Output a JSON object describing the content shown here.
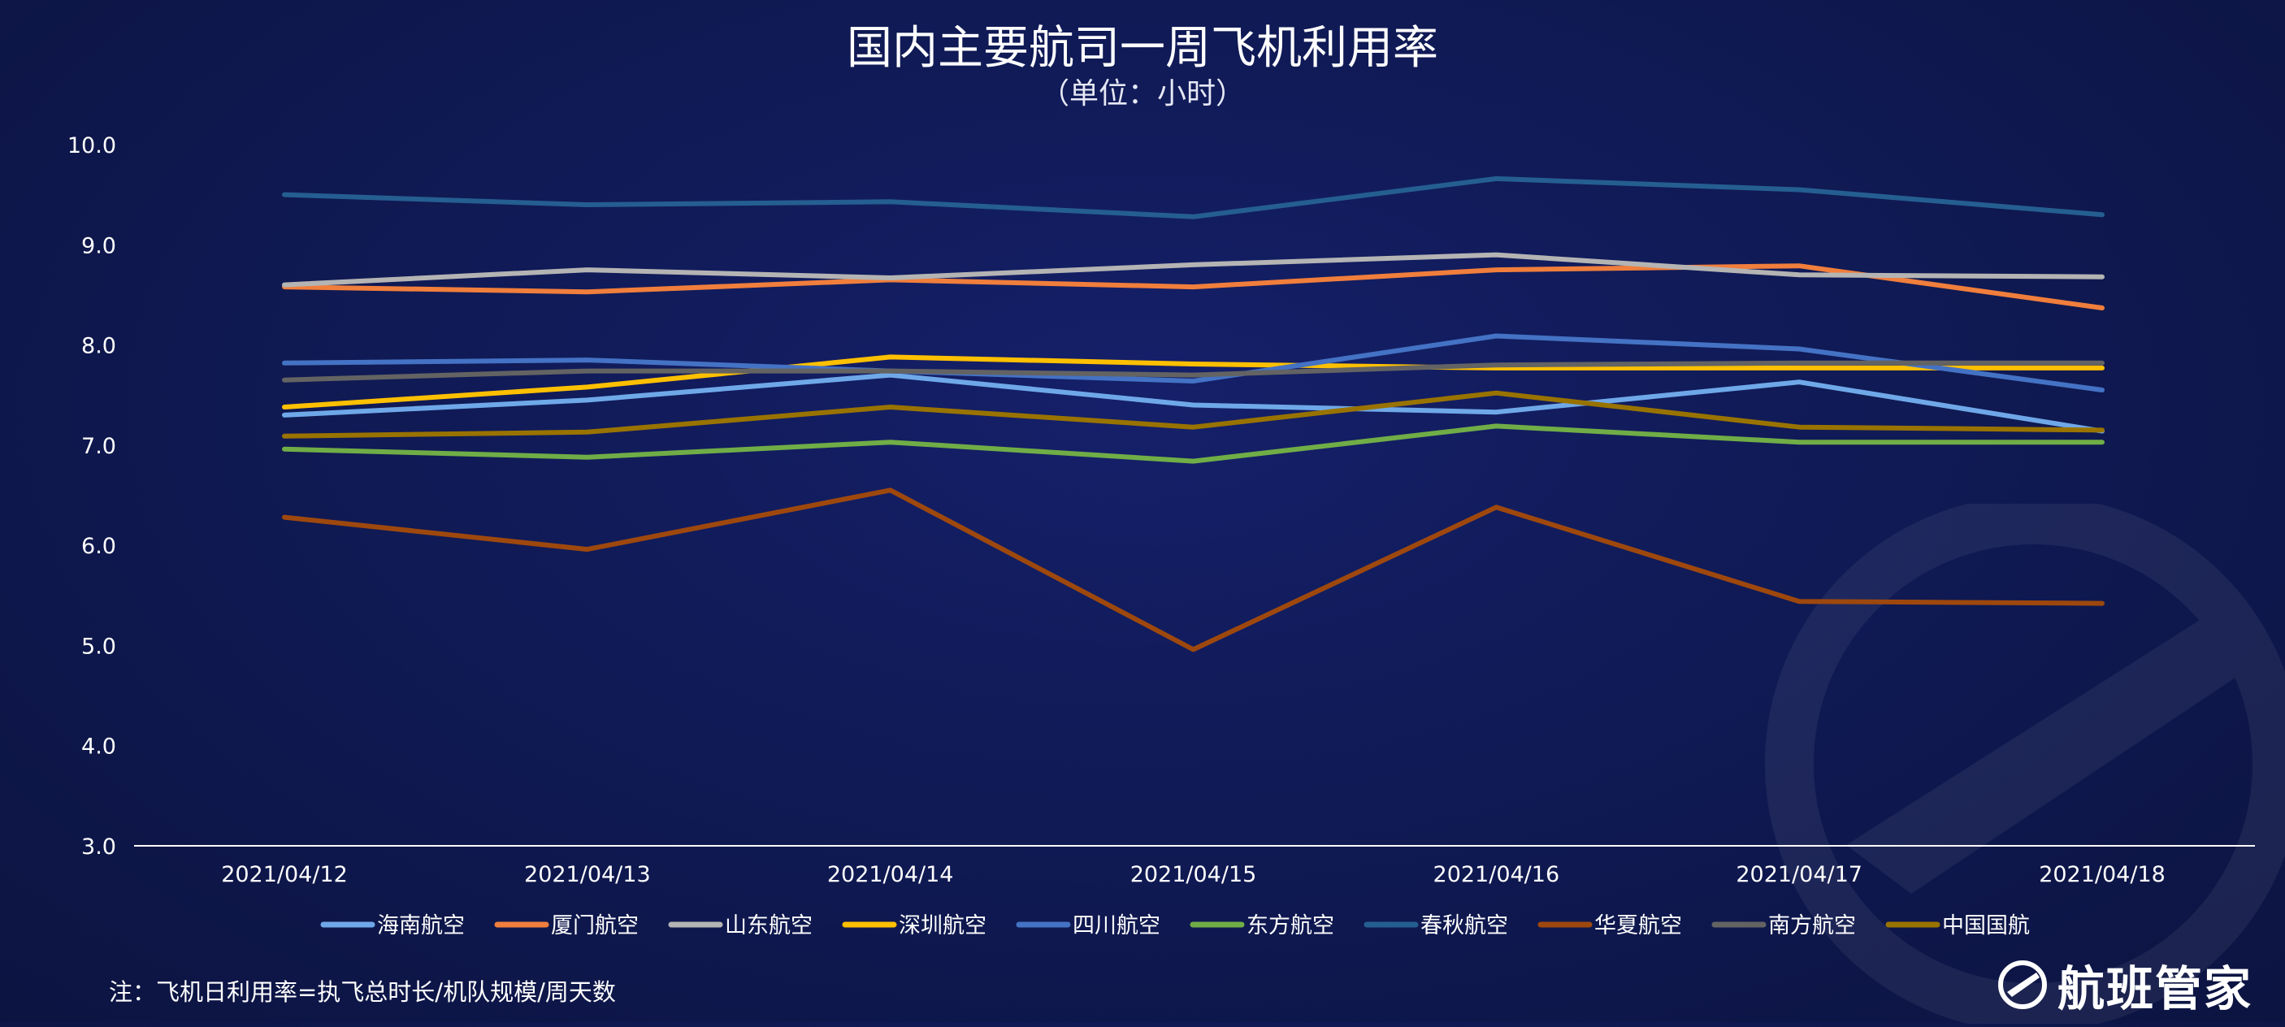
{
  "title": "国内主要航司一周飞机利用率",
  "subtitle": "（单位：小时）",
  "note": "注：飞机日利用率=执飞总时长/机队规模/周天数",
  "brand": "航班管家",
  "chart_data": {
    "type": "line",
    "title": "国内主要航司一周飞机利用率",
    "subtitle": "（单位：小时）",
    "x": [
      "2021/04/12",
      "2021/04/13",
      "2021/04/14",
      "2021/04/15",
      "2021/04/16",
      "2021/04/17",
      "2021/04/18"
    ],
    "ylim": [
      3.0,
      10.0
    ],
    "yticks": [
      "3.0",
      "4.0",
      "5.0",
      "6.0",
      "7.0",
      "8.0",
      "9.0",
      "10.0"
    ],
    "grid": false,
    "legend": "bottom",
    "series": [
      {
        "name": "海南航空",
        "color": "#6fa8e8",
        "values": [
          7.3,
          7.45,
          7.7,
          7.4,
          7.33,
          7.63,
          7.14
        ]
      },
      {
        "name": "厦门航空",
        "color": "#f07e3c",
        "values": [
          8.58,
          8.53,
          8.65,
          8.58,
          8.75,
          8.79,
          8.37
        ]
      },
      {
        "name": "山东航空",
        "color": "#b4b4b4",
        "values": [
          8.6,
          8.75,
          8.67,
          8.8,
          8.9,
          8.7,
          8.68
        ]
      },
      {
        "name": "深圳航空",
        "color": "#ffc000",
        "values": [
          7.38,
          7.58,
          7.88,
          7.81,
          7.77,
          7.77,
          7.77
        ]
      },
      {
        "name": "四川航空",
        "color": "#4472c4",
        "values": [
          7.82,
          7.85,
          7.74,
          7.64,
          8.09,
          7.96,
          7.55
        ]
      },
      {
        "name": "东方航空",
        "color": "#70ad47",
        "values": [
          6.96,
          6.88,
          7.03,
          6.84,
          7.19,
          7.03,
          7.03
        ]
      },
      {
        "name": "春秋航空",
        "color": "#255e91",
        "values": [
          9.5,
          9.4,
          9.43,
          9.28,
          9.66,
          9.55,
          9.3
        ]
      },
      {
        "name": "华夏航空",
        "color": "#9e480e",
        "values": [
          6.28,
          5.96,
          6.55,
          4.96,
          6.38,
          5.44,
          5.42
        ]
      },
      {
        "name": "南方航空",
        "color": "#636363",
        "values": [
          7.65,
          7.74,
          7.74,
          7.7,
          7.8,
          7.82,
          7.82
        ]
      },
      {
        "name": "中国国航",
        "color": "#997300",
        "values": [
          7.09,
          7.13,
          7.38,
          7.18,
          7.52,
          7.18,
          7.15
        ]
      }
    ]
  }
}
